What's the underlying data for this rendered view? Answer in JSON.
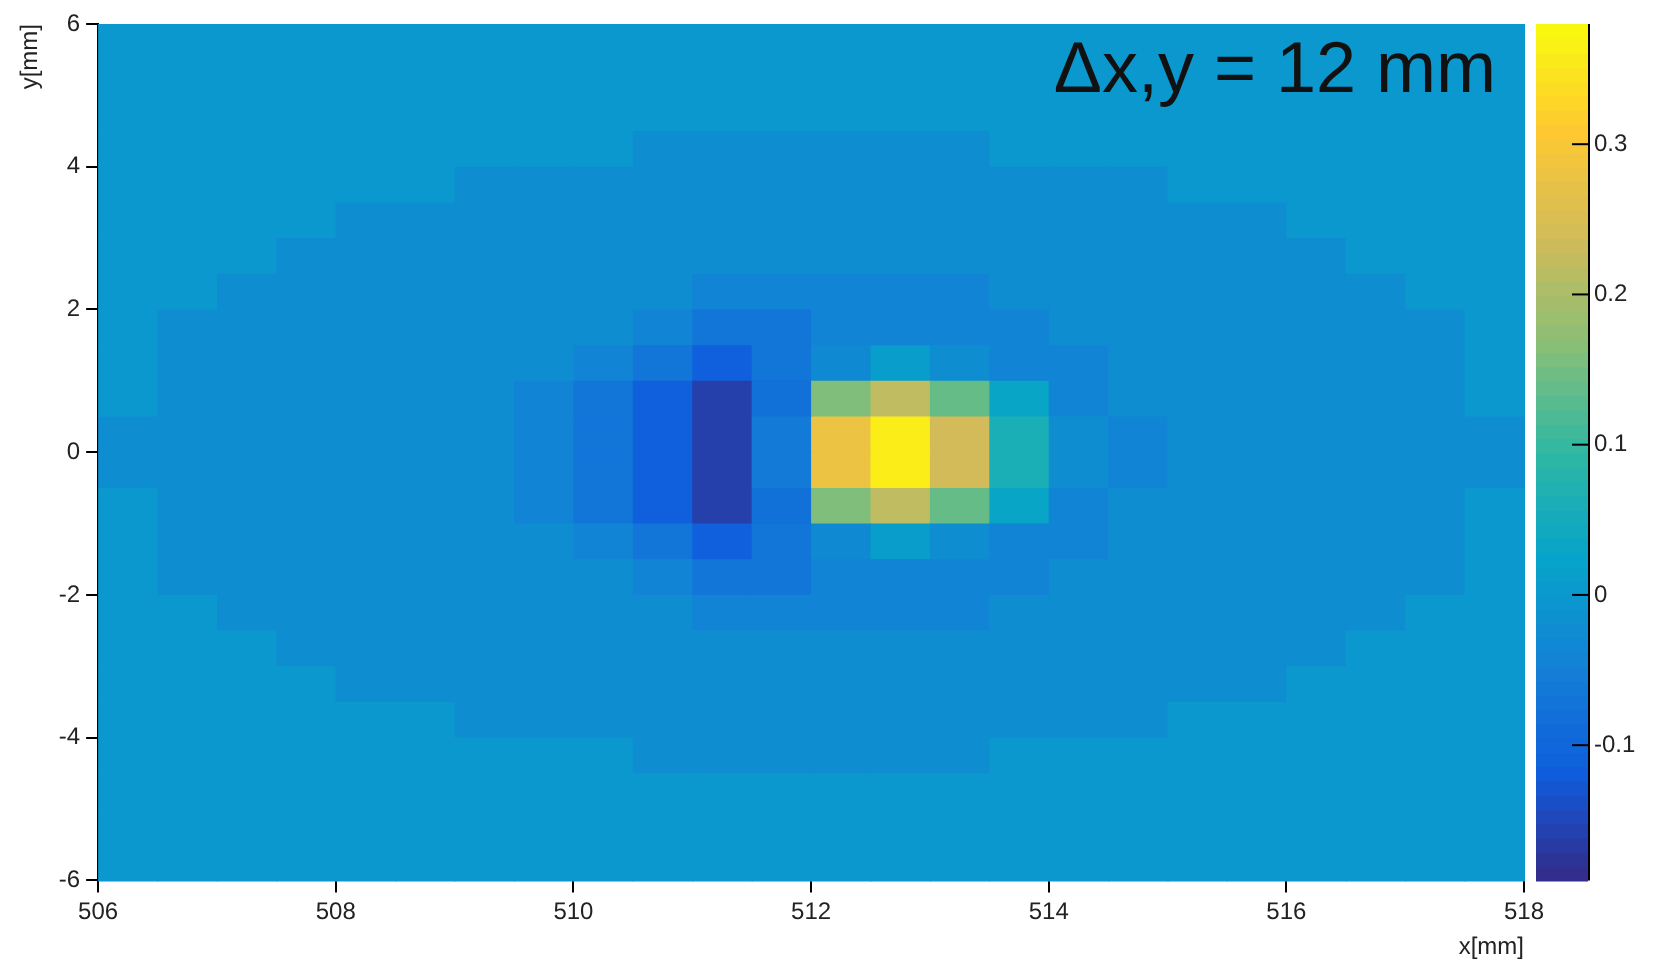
{
  "chart_data": {
    "type": "heatmap",
    "xlabel": "x[mm]",
    "ylabel": "y[mm]",
    "annotations": [
      "Δx,y = 12 mm"
    ],
    "x": [
      506.25,
      506.75,
      507.25,
      507.75,
      508.25,
      508.75,
      509.25,
      509.75,
      510.25,
      510.75,
      511.25,
      511.75,
      512.25,
      512.75,
      513.25,
      513.75,
      514.25,
      514.75,
      515.25,
      515.75,
      516.25,
      516.75,
      517.25,
      517.75
    ],
    "y": [
      5.75,
      5.25,
      4.75,
      4.25,
      3.75,
      3.25,
      2.75,
      2.25,
      1.75,
      1.25,
      0.75,
      0.25,
      -0.25,
      -0.75,
      -1.25,
      -1.75,
      -2.25,
      -2.75,
      -3.25,
      -3.75,
      -4.25,
      -4.75,
      -5.25,
      -5.75
    ],
    "xlim": [
      506,
      518
    ],
    "xticks": [
      506,
      508,
      510,
      512,
      514,
      516,
      518
    ],
    "ylim": [
      -6,
      6
    ],
    "yticks": [
      -6,
      -4,
      -2,
      0,
      2,
      4,
      6
    ],
    "clim": [
      -0.19,
      0.38
    ],
    "cticks": [
      -0.1,
      0,
      0.1,
      0.2,
      0.3
    ],
    "cells": [
      [
        0,
        0,
        0,
        0,
        0,
        0,
        0,
        0,
        0,
        0,
        0,
        0,
        0,
        0,
        0,
        0,
        0,
        0,
        0,
        0,
        0,
        0,
        0,
        0
      ],
      [
        0,
        0,
        0,
        0,
        0,
        0,
        0,
        0,
        0,
        0,
        0,
        0,
        0,
        0,
        0,
        0,
        0,
        0,
        0,
        0,
        0,
        0,
        0,
        0
      ],
      [
        0,
        0,
        0,
        0,
        0,
        0,
        0,
        0,
        0,
        0,
        0,
        0,
        0,
        0,
        0,
        0,
        0,
        0,
        0,
        0,
        0,
        0,
        0,
        0
      ],
      [
        0,
        0,
        0,
        0,
        0,
        0,
        0,
        0,
        0,
        -0.02,
        -0.02,
        -0.02,
        -0.02,
        -0.02,
        -0.02,
        0,
        0,
        0,
        0,
        0,
        0,
        0,
        0,
        0
      ],
      [
        0,
        0,
        0,
        0,
        0,
        0,
        -0.02,
        -0.02,
        -0.02,
        -0.02,
        -0.02,
        -0.02,
        -0.02,
        -0.02,
        -0.02,
        -0.02,
        -0.02,
        -0.02,
        0,
        0,
        0,
        0,
        0,
        0
      ],
      [
        0,
        0,
        0,
        0,
        -0.02,
        -0.02,
        -0.02,
        -0.02,
        -0.02,
        -0.02,
        -0.02,
        -0.02,
        -0.02,
        -0.02,
        -0.02,
        -0.02,
        -0.02,
        -0.02,
        -0.02,
        -0.02,
        0,
        0,
        0,
        0
      ],
      [
        0,
        0,
        0,
        -0.02,
        -0.02,
        -0.02,
        -0.02,
        -0.02,
        -0.02,
        -0.02,
        -0.02,
        -0.02,
        -0.02,
        -0.02,
        -0.02,
        -0.02,
        -0.02,
        -0.02,
        -0.02,
        -0.02,
        -0.02,
        0,
        0,
        0
      ],
      [
        0,
        0,
        -0.02,
        -0.02,
        -0.02,
        -0.02,
        -0.02,
        -0.02,
        -0.02,
        -0.02,
        -0.04,
        -0.04,
        -0.04,
        -0.04,
        -0.04,
        -0.02,
        -0.02,
        -0.02,
        -0.02,
        -0.02,
        -0.02,
        -0.02,
        0,
        0
      ],
      [
        0,
        -0.02,
        -0.02,
        -0.02,
        -0.02,
        -0.02,
        -0.02,
        -0.02,
        -0.02,
        -0.04,
        -0.07,
        -0.07,
        -0.04,
        -0.04,
        -0.04,
        -0.04,
        -0.02,
        -0.02,
        -0.02,
        -0.02,
        -0.02,
        -0.02,
        -0.02,
        0
      ],
      [
        0,
        -0.02,
        -0.02,
        -0.02,
        -0.02,
        -0.02,
        -0.02,
        -0.02,
        -0.04,
        -0.07,
        -0.11,
        -0.07,
        -0.03,
        0.01,
        -0.02,
        -0.04,
        -0.04,
        -0.02,
        -0.02,
        -0.02,
        -0.02,
        -0.02,
        -0.02,
        0
      ],
      [
        0,
        -0.02,
        -0.02,
        -0.02,
        -0.02,
        -0.02,
        -0.02,
        -0.04,
        -0.07,
        -0.11,
        -0.16,
        -0.08,
        0.16,
        0.22,
        0.14,
        0.03,
        -0.04,
        -0.02,
        -0.02,
        -0.02,
        -0.02,
        -0.02,
        -0.02,
        0
      ],
      [
        -0.02,
        -0.02,
        -0.02,
        -0.02,
        -0.02,
        -0.02,
        -0.02,
        -0.04,
        -0.07,
        -0.11,
        -0.16,
        -0.06,
        0.28,
        0.36,
        0.24,
        0.06,
        -0.02,
        -0.04,
        -0.02,
        -0.02,
        -0.02,
        -0.02,
        -0.02,
        -0.02
      ],
      [
        -0.02,
        -0.02,
        -0.02,
        -0.02,
        -0.02,
        -0.02,
        -0.02,
        -0.04,
        -0.07,
        -0.11,
        -0.16,
        -0.06,
        0.28,
        0.36,
        0.24,
        0.06,
        -0.02,
        -0.04,
        -0.02,
        -0.02,
        -0.02,
        -0.02,
        -0.02,
        -0.02
      ],
      [
        0,
        -0.02,
        -0.02,
        -0.02,
        -0.02,
        -0.02,
        -0.02,
        -0.04,
        -0.07,
        -0.11,
        -0.16,
        -0.08,
        0.16,
        0.22,
        0.14,
        0.03,
        -0.04,
        -0.02,
        -0.02,
        -0.02,
        -0.02,
        -0.02,
        -0.02,
        0
      ],
      [
        0,
        -0.02,
        -0.02,
        -0.02,
        -0.02,
        -0.02,
        -0.02,
        -0.02,
        -0.04,
        -0.07,
        -0.11,
        -0.07,
        -0.03,
        0.01,
        -0.02,
        -0.04,
        -0.04,
        -0.02,
        -0.02,
        -0.02,
        -0.02,
        -0.02,
        -0.02,
        0
      ],
      [
        0,
        -0.02,
        -0.02,
        -0.02,
        -0.02,
        -0.02,
        -0.02,
        -0.02,
        -0.02,
        -0.04,
        -0.07,
        -0.07,
        -0.04,
        -0.04,
        -0.04,
        -0.04,
        -0.02,
        -0.02,
        -0.02,
        -0.02,
        -0.02,
        -0.02,
        -0.02,
        0
      ],
      [
        0,
        0,
        -0.02,
        -0.02,
        -0.02,
        -0.02,
        -0.02,
        -0.02,
        -0.02,
        -0.02,
        -0.04,
        -0.04,
        -0.04,
        -0.04,
        -0.04,
        -0.02,
        -0.02,
        -0.02,
        -0.02,
        -0.02,
        -0.02,
        -0.02,
        0,
        0
      ],
      [
        0,
        0,
        0,
        -0.02,
        -0.02,
        -0.02,
        -0.02,
        -0.02,
        -0.02,
        -0.02,
        -0.02,
        -0.02,
        -0.02,
        -0.02,
        -0.02,
        -0.02,
        -0.02,
        -0.02,
        -0.02,
        -0.02,
        -0.02,
        0,
        0,
        0
      ],
      [
        0,
        0,
        0,
        0,
        -0.02,
        -0.02,
        -0.02,
        -0.02,
        -0.02,
        -0.02,
        -0.02,
        -0.02,
        -0.02,
        -0.02,
        -0.02,
        -0.02,
        -0.02,
        -0.02,
        -0.02,
        -0.02,
        0,
        0,
        0,
        0
      ],
      [
        0,
        0,
        0,
        0,
        0,
        0,
        -0.02,
        -0.02,
        -0.02,
        -0.02,
        -0.02,
        -0.02,
        -0.02,
        -0.02,
        -0.02,
        -0.02,
        -0.02,
        -0.02,
        0,
        0,
        0,
        0,
        0,
        0
      ],
      [
        0,
        0,
        0,
        0,
        0,
        0,
        0,
        0,
        0,
        -0.02,
        -0.02,
        -0.02,
        -0.02,
        -0.02,
        -0.02,
        0,
        0,
        0,
        0,
        0,
        0,
        0,
        0,
        0
      ],
      [
        0,
        0,
        0,
        0,
        0,
        0,
        0,
        0,
        0,
        0,
        0,
        0,
        0,
        0,
        0,
        0,
        0,
        0,
        0,
        0,
        0,
        0,
        0,
        0
      ],
      [
        0,
        0,
        0,
        0,
        0,
        0,
        0,
        0,
        0,
        0,
        0,
        0,
        0,
        0,
        0,
        0,
        0,
        0,
        0,
        0,
        0,
        0,
        0,
        0
      ],
      [
        0,
        0,
        0,
        0,
        0,
        0,
        0,
        0,
        0,
        0,
        0,
        0,
        0,
        0,
        0,
        0,
        0,
        0,
        0,
        0,
        0,
        0,
        0,
        0
      ]
    ]
  }
}
